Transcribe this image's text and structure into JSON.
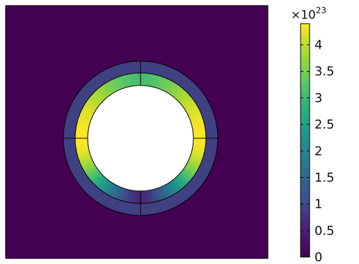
{
  "chart_data": {
    "type": "heatmap",
    "colormap": "viridis",
    "colorbar": {
      "multiplier_base": "×10",
      "multiplier_exponent": "23",
      "min": 0,
      "max": 4.4,
      "tick_values": [
        0,
        0.5,
        1,
        1.5,
        2,
        2.5,
        3,
        3.5,
        4
      ],
      "tick_labels": [
        "0",
        "0.5",
        "1",
        "1.5",
        "2",
        "2.5",
        "3",
        "3.5",
        "4"
      ]
    },
    "field": {
      "background_value": 0,
      "outer_ring_value": 0.9,
      "inner_ring_peak_value": 4.4,
      "inner_ring_top_value": 3.1,
      "inner_ring_bottom_value": 0.6,
      "hole": "empty"
    },
    "colors": {
      "frame": "#000000",
      "background": "#ffffff"
    }
  }
}
